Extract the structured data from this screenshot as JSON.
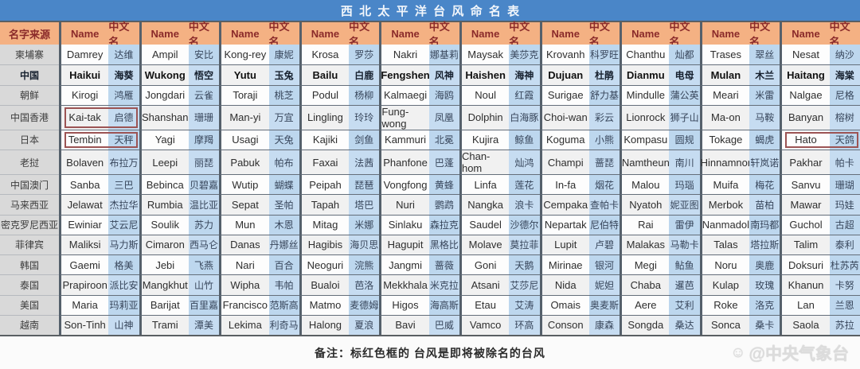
{
  "title": "西北太平洋台风命名表",
  "header": {
    "source_label": "名字来源",
    "name_label": "Name",
    "cn_label": "中文名",
    "pair_count": 10
  },
  "table": {
    "rows": [
      {
        "source": "柬埔寨",
        "bold": false,
        "pairs": [
          [
            "Damrey",
            "达维"
          ],
          [
            "Ampil",
            "安比"
          ],
          [
            "Kong-rey",
            "康妮"
          ],
          [
            "Krosa",
            "罗莎"
          ],
          [
            "Nakri",
            "娜基莉"
          ],
          [
            "Maysak",
            "美莎克"
          ],
          [
            "Krovanh",
            "科罗旺"
          ],
          [
            "Chanthu",
            "灿都"
          ],
          [
            "Trases",
            "翠丝"
          ],
          [
            "Nesat",
            "纳沙"
          ]
        ]
      },
      {
        "source": "中国",
        "bold": true,
        "pairs": [
          [
            "Haikui",
            "海葵"
          ],
          [
            "Wukong",
            "悟空"
          ],
          [
            "Yutu",
            "玉兔"
          ],
          [
            "Bailu",
            "白鹿"
          ],
          [
            "Fengshen",
            "风神"
          ],
          [
            "Haishen",
            "海神"
          ],
          [
            "Dujuan",
            "杜鹃"
          ],
          [
            "Dianmu",
            "电母"
          ],
          [
            "Mulan",
            "木兰"
          ],
          [
            "Haitang",
            "海棠"
          ]
        ]
      },
      {
        "source": "朝鲜",
        "bold": false,
        "pairs": [
          [
            "Kirogi",
            "鸿雁"
          ],
          [
            "Jongdari",
            "云雀"
          ],
          [
            "Toraji",
            "桃芝"
          ],
          [
            "Podul",
            "杨柳"
          ],
          [
            "Kalmaegi",
            "海鸥"
          ],
          [
            "Noul",
            "红霞"
          ],
          [
            "Surigae",
            "舒力基"
          ],
          [
            "Mindulle",
            "蒲公英"
          ],
          [
            "Meari",
            "米雷"
          ],
          [
            "Nalgae",
            "尼格"
          ]
        ]
      },
      {
        "source": "中国香港",
        "bold": false,
        "pairs": [
          [
            "Kai-tak",
            "启德"
          ],
          [
            "Shanshan",
            "珊珊"
          ],
          [
            "Man-yi",
            "万宜"
          ],
          [
            "Lingling",
            "玲玲"
          ],
          [
            "Fung-wong",
            "凤凰"
          ],
          [
            "Dolphin",
            "白海豚"
          ],
          [
            "Choi-wan",
            "彩云"
          ],
          [
            "Lionrock",
            "狮子山"
          ],
          [
            "Ma-on",
            "马鞍"
          ],
          [
            "Banyan",
            "榕树"
          ]
        ]
      },
      {
        "source": "日本",
        "bold": false,
        "pairs": [
          [
            "Tembin",
            "天秤"
          ],
          [
            "Yagi",
            "摩羯"
          ],
          [
            "Usagi",
            "天兔"
          ],
          [
            "Kajiki",
            "剑鱼"
          ],
          [
            "Kammuri",
            "北冕"
          ],
          [
            "Kujira",
            "鲸鱼"
          ],
          [
            "Koguma",
            "小熊"
          ],
          [
            "Kompasu",
            "圆规"
          ],
          [
            "Tokage",
            "蝎虎"
          ],
          [
            "Hato",
            "天鸽"
          ]
        ]
      },
      {
        "source": "老挝",
        "bold": false,
        "pairs": [
          [
            "Bolaven",
            "布拉万"
          ],
          [
            "Leepi",
            "丽琵"
          ],
          [
            "Pabuk",
            "帕布"
          ],
          [
            "Faxai",
            "法茜"
          ],
          [
            "Phanfone",
            "巴蓬"
          ],
          [
            "Chan-hom",
            "灿鸿"
          ],
          [
            "Champi",
            "蔷琵"
          ],
          [
            "Namtheun",
            "南川"
          ],
          [
            "Hinnamnor",
            "轩岚诺"
          ],
          [
            "Pakhar",
            "帕卡"
          ]
        ]
      },
      {
        "source": "中国澳门",
        "bold": false,
        "pairs": [
          [
            "Sanba",
            "三巴"
          ],
          [
            "Bebinca",
            "贝碧嘉"
          ],
          [
            "Wutip",
            "蝴蝶"
          ],
          [
            "Peipah",
            "琵琶"
          ],
          [
            "Vongfong",
            "黄蜂"
          ],
          [
            "Linfa",
            "莲花"
          ],
          [
            "In-fa",
            "烟花"
          ],
          [
            "Malou",
            "玛瑙"
          ],
          [
            "Muifa",
            "梅花"
          ],
          [
            "Sanvu",
            "珊瑚"
          ]
        ]
      },
      {
        "source": "马来西亚",
        "bold": false,
        "pairs": [
          [
            "Jelawat",
            "杰拉华"
          ],
          [
            "Rumbia",
            "温比亚"
          ],
          [
            "Sepat",
            "圣帕"
          ],
          [
            "Tapah",
            "塔巴"
          ],
          [
            "Nuri",
            "鹦鹉"
          ],
          [
            "Nangka",
            "浪卡"
          ],
          [
            "Cempaka",
            "查帕卡"
          ],
          [
            "Nyatoh",
            "妮亚图"
          ],
          [
            "Merbok",
            "苗柏"
          ],
          [
            "Mawar",
            "玛娃"
          ]
        ]
      },
      {
        "source": "密克罗尼西亚",
        "bold": false,
        "pairs": [
          [
            "Ewiniar",
            "艾云尼"
          ],
          [
            "Soulik",
            "苏力"
          ],
          [
            "Mun",
            "木恩"
          ],
          [
            "Mitag",
            "米娜"
          ],
          [
            "Sinlaku",
            "森拉克"
          ],
          [
            "Saudel",
            "沙德尔"
          ],
          [
            "Nepartak",
            "尼伯特"
          ],
          [
            "Rai",
            "雷伊"
          ],
          [
            "Nanmadol",
            "南玛都"
          ],
          [
            "Guchol",
            "古超"
          ]
        ]
      },
      {
        "source": "菲律宾",
        "bold": false,
        "pairs": [
          [
            "Maliksi",
            "马力斯"
          ],
          [
            "Cimaron",
            "西马仑"
          ],
          [
            "Danas",
            "丹娜丝"
          ],
          [
            "Hagibis",
            "海贝思"
          ],
          [
            "Hagupit",
            "黑格比"
          ],
          [
            "Molave",
            "莫拉菲"
          ],
          [
            "Lupit",
            "卢碧"
          ],
          [
            "Malakas",
            "马勒卡"
          ],
          [
            "Talas",
            "塔拉斯"
          ],
          [
            "Talim",
            "泰利"
          ]
        ]
      },
      {
        "source": "韩国",
        "bold": false,
        "pairs": [
          [
            "Gaemi",
            "格美"
          ],
          [
            "Jebi",
            "飞燕"
          ],
          [
            "Nari",
            "百合"
          ],
          [
            "Neoguri",
            "浣熊"
          ],
          [
            "Jangmi",
            "蔷薇"
          ],
          [
            "Goni",
            "天鹅"
          ],
          [
            "Mirinae",
            "银河"
          ],
          [
            "Megi",
            "鲇鱼"
          ],
          [
            "Noru",
            "奥鹿"
          ],
          [
            "Doksuri",
            "杜苏芮"
          ]
        ]
      },
      {
        "source": "泰国",
        "bold": false,
        "pairs": [
          [
            "Prapiroon",
            "派比安"
          ],
          [
            "Mangkhut",
            "山竹"
          ],
          [
            "Wipha",
            "韦帕"
          ],
          [
            "Bualoi",
            "芭洛"
          ],
          [
            "Mekkhala",
            "米克拉"
          ],
          [
            "Atsani",
            "艾莎尼"
          ],
          [
            "Nida",
            "妮妲"
          ],
          [
            "Chaba",
            "暹芭"
          ],
          [
            "Kulap",
            "玫瑰"
          ],
          [
            "Khanun",
            "卡努"
          ]
        ]
      },
      {
        "source": "美国",
        "bold": false,
        "pairs": [
          [
            "Maria",
            "玛莉亚"
          ],
          [
            "Barijat",
            "百里嘉"
          ],
          [
            "Francisco",
            "范斯高"
          ],
          [
            "Matmo",
            "麦德姆"
          ],
          [
            "Higos",
            "海高斯"
          ],
          [
            "Etau",
            "艾涛"
          ],
          [
            "Omais",
            "奥麦斯"
          ],
          [
            "Aere",
            "艾利"
          ],
          [
            "Roke",
            "洛克"
          ],
          [
            "Lan",
            "兰恩"
          ]
        ]
      },
      {
        "source": "越南",
        "bold": false,
        "pairs": [
          [
            "Son-Tinh",
            "山神"
          ],
          [
            "Trami",
            "潭美"
          ],
          [
            "Lekima",
            "利奇马"
          ],
          [
            "Halong",
            "夏浪"
          ],
          [
            "Bavi",
            "巴威"
          ],
          [
            "Vamco",
            "环高"
          ],
          [
            "Conson",
            "康森"
          ],
          [
            "Songda",
            "桑达"
          ],
          [
            "Sonca",
            "桑卡"
          ],
          [
            "Saola",
            "苏拉"
          ]
        ]
      }
    ],
    "retired_boxed": [
      {
        "row": 3,
        "group": 0
      },
      {
        "row": 4,
        "group": 0
      },
      {
        "row": 4,
        "group": 9
      }
    ]
  },
  "footer": {
    "note": "备注：标红色框的 台风是即将被除名的台风",
    "watermark": "@中央气象台",
    "watermark_icon": "☺"
  },
  "colors": {
    "title_bar": "#4a86c8",
    "header_bg": "#f4b183",
    "header_text": "#8a2a2a",
    "cn_cell_bg": "#bdd7ee",
    "source_col_bg": "#d9d9d9",
    "retired_box": "#9c5454"
  }
}
